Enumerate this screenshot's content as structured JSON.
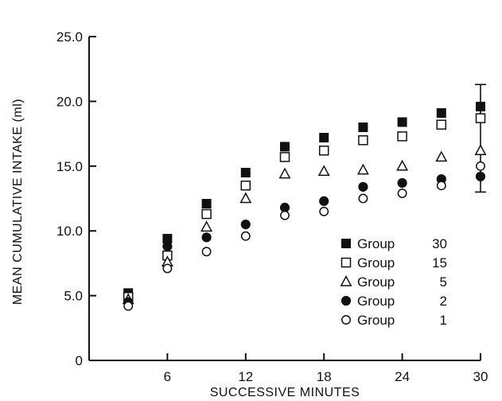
{
  "chart_data": {
    "type": "scatter",
    "xlabel": "SUCCESSIVE MINUTES",
    "ylabel": "MEAN CUMULATIVE INTAKE (ml)",
    "xlim": [
      0,
      30
    ],
    "ylim": [
      0,
      25
    ],
    "xticks": [
      6,
      12,
      18,
      24,
      30
    ],
    "xtick_labels": [
      "6",
      "12",
      "18",
      "24",
      "30"
    ],
    "yticks": [
      0,
      5,
      10,
      15,
      20,
      25
    ],
    "ytick_labels": [
      "0",
      "5.0",
      "10.0",
      "15.0",
      "20.0",
      "25.0"
    ],
    "grid": false,
    "legend_position": "bottom-right",
    "x": [
      3,
      6,
      9,
      12,
      15,
      18,
      21,
      24,
      27,
      30
    ],
    "series": [
      {
        "name": "30",
        "label": "Group",
        "number": "30",
        "marker": "filled-square",
        "values": [
          5.2,
          9.4,
          12.1,
          14.5,
          16.5,
          17.2,
          18.0,
          18.4,
          19.1,
          19.6
        ]
      },
      {
        "name": "15",
        "label": "Group",
        "number": "15",
        "marker": "open-square",
        "values": [
          4.9,
          8.1,
          11.3,
          13.5,
          15.7,
          16.2,
          17.0,
          17.3,
          18.2,
          18.7
        ]
      },
      {
        "name": "5",
        "label": "Group",
        "number": "5",
        "marker": "open-triangle",
        "values": [
          4.7,
          7.6,
          10.3,
          12.5,
          14.4,
          14.6,
          14.7,
          15.0,
          15.7,
          16.2
        ]
      },
      {
        "name": "2",
        "label": "Group",
        "number": "2",
        "marker": "filled-circle",
        "values": [
          4.5,
          8.8,
          9.5,
          10.5,
          11.8,
          12.3,
          13.4,
          13.7,
          14.0,
          14.2
        ]
      },
      {
        "name": "1",
        "label": "Group",
        "number": "1",
        "marker": "open-circle",
        "values": [
          4.2,
          7.1,
          8.4,
          9.6,
          11.2,
          11.5,
          12.5,
          12.9,
          13.5,
          15.0
        ]
      }
    ],
    "error_bars": [
      {
        "x": 30,
        "low": 13.0,
        "high": 21.3
      }
    ]
  }
}
